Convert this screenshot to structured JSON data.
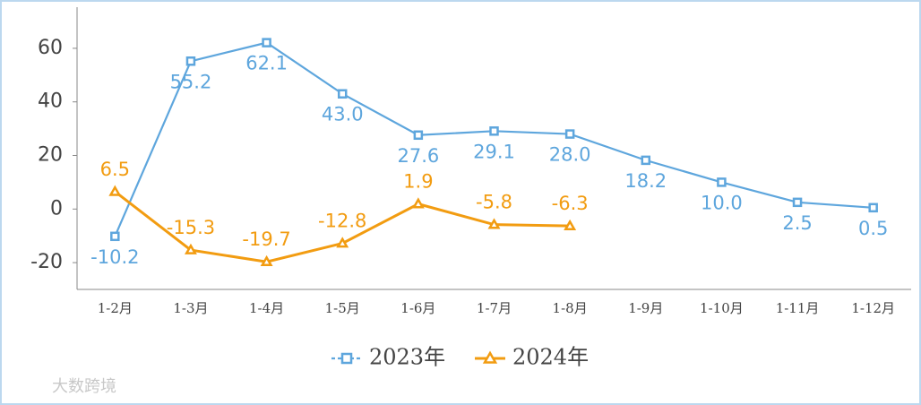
{
  "chart_data": {
    "type": "line",
    "categories": [
      "1-2月",
      "1-3月",
      "1-4月",
      "1-5月",
      "1-6月",
      "1-7月",
      "1-8月",
      "1-9月",
      "1-10月",
      "1-11月",
      "1-12月"
    ],
    "series": [
      {
        "name": "2023年",
        "color": "#5ea6dd",
        "marker": "square",
        "values": [
          -10.2,
          55.2,
          62.1,
          43.0,
          27.6,
          29.1,
          28.0,
          18.2,
          10.0,
          2.5,
          0.5
        ],
        "value_labels": [
          "-10.2",
          "55.2",
          "62.1",
          "43.0",
          "27.6",
          "29.1",
          "28.0",
          "18.2",
          "10.0",
          "2.5",
          "0.5"
        ]
      },
      {
        "name": "2024年",
        "color": "#f29c11",
        "marker": "triangle",
        "values": [
          6.5,
          -15.3,
          -19.7,
          -12.8,
          1.9,
          -5.8,
          -6.3,
          null,
          null,
          null,
          null
        ],
        "value_labels": [
          "6.5",
          "-15.3",
          "-19.7",
          "-12.8",
          "1.9",
          "-5.8",
          "-6.3",
          null,
          null,
          null,
          null
        ]
      }
    ],
    "ylim": [
      -30,
      70
    ],
    "yticks": [
      -20,
      0,
      20,
      40,
      60
    ],
    "grid": false,
    "legend": "bottom",
    "watermark": "大数跨境"
  }
}
